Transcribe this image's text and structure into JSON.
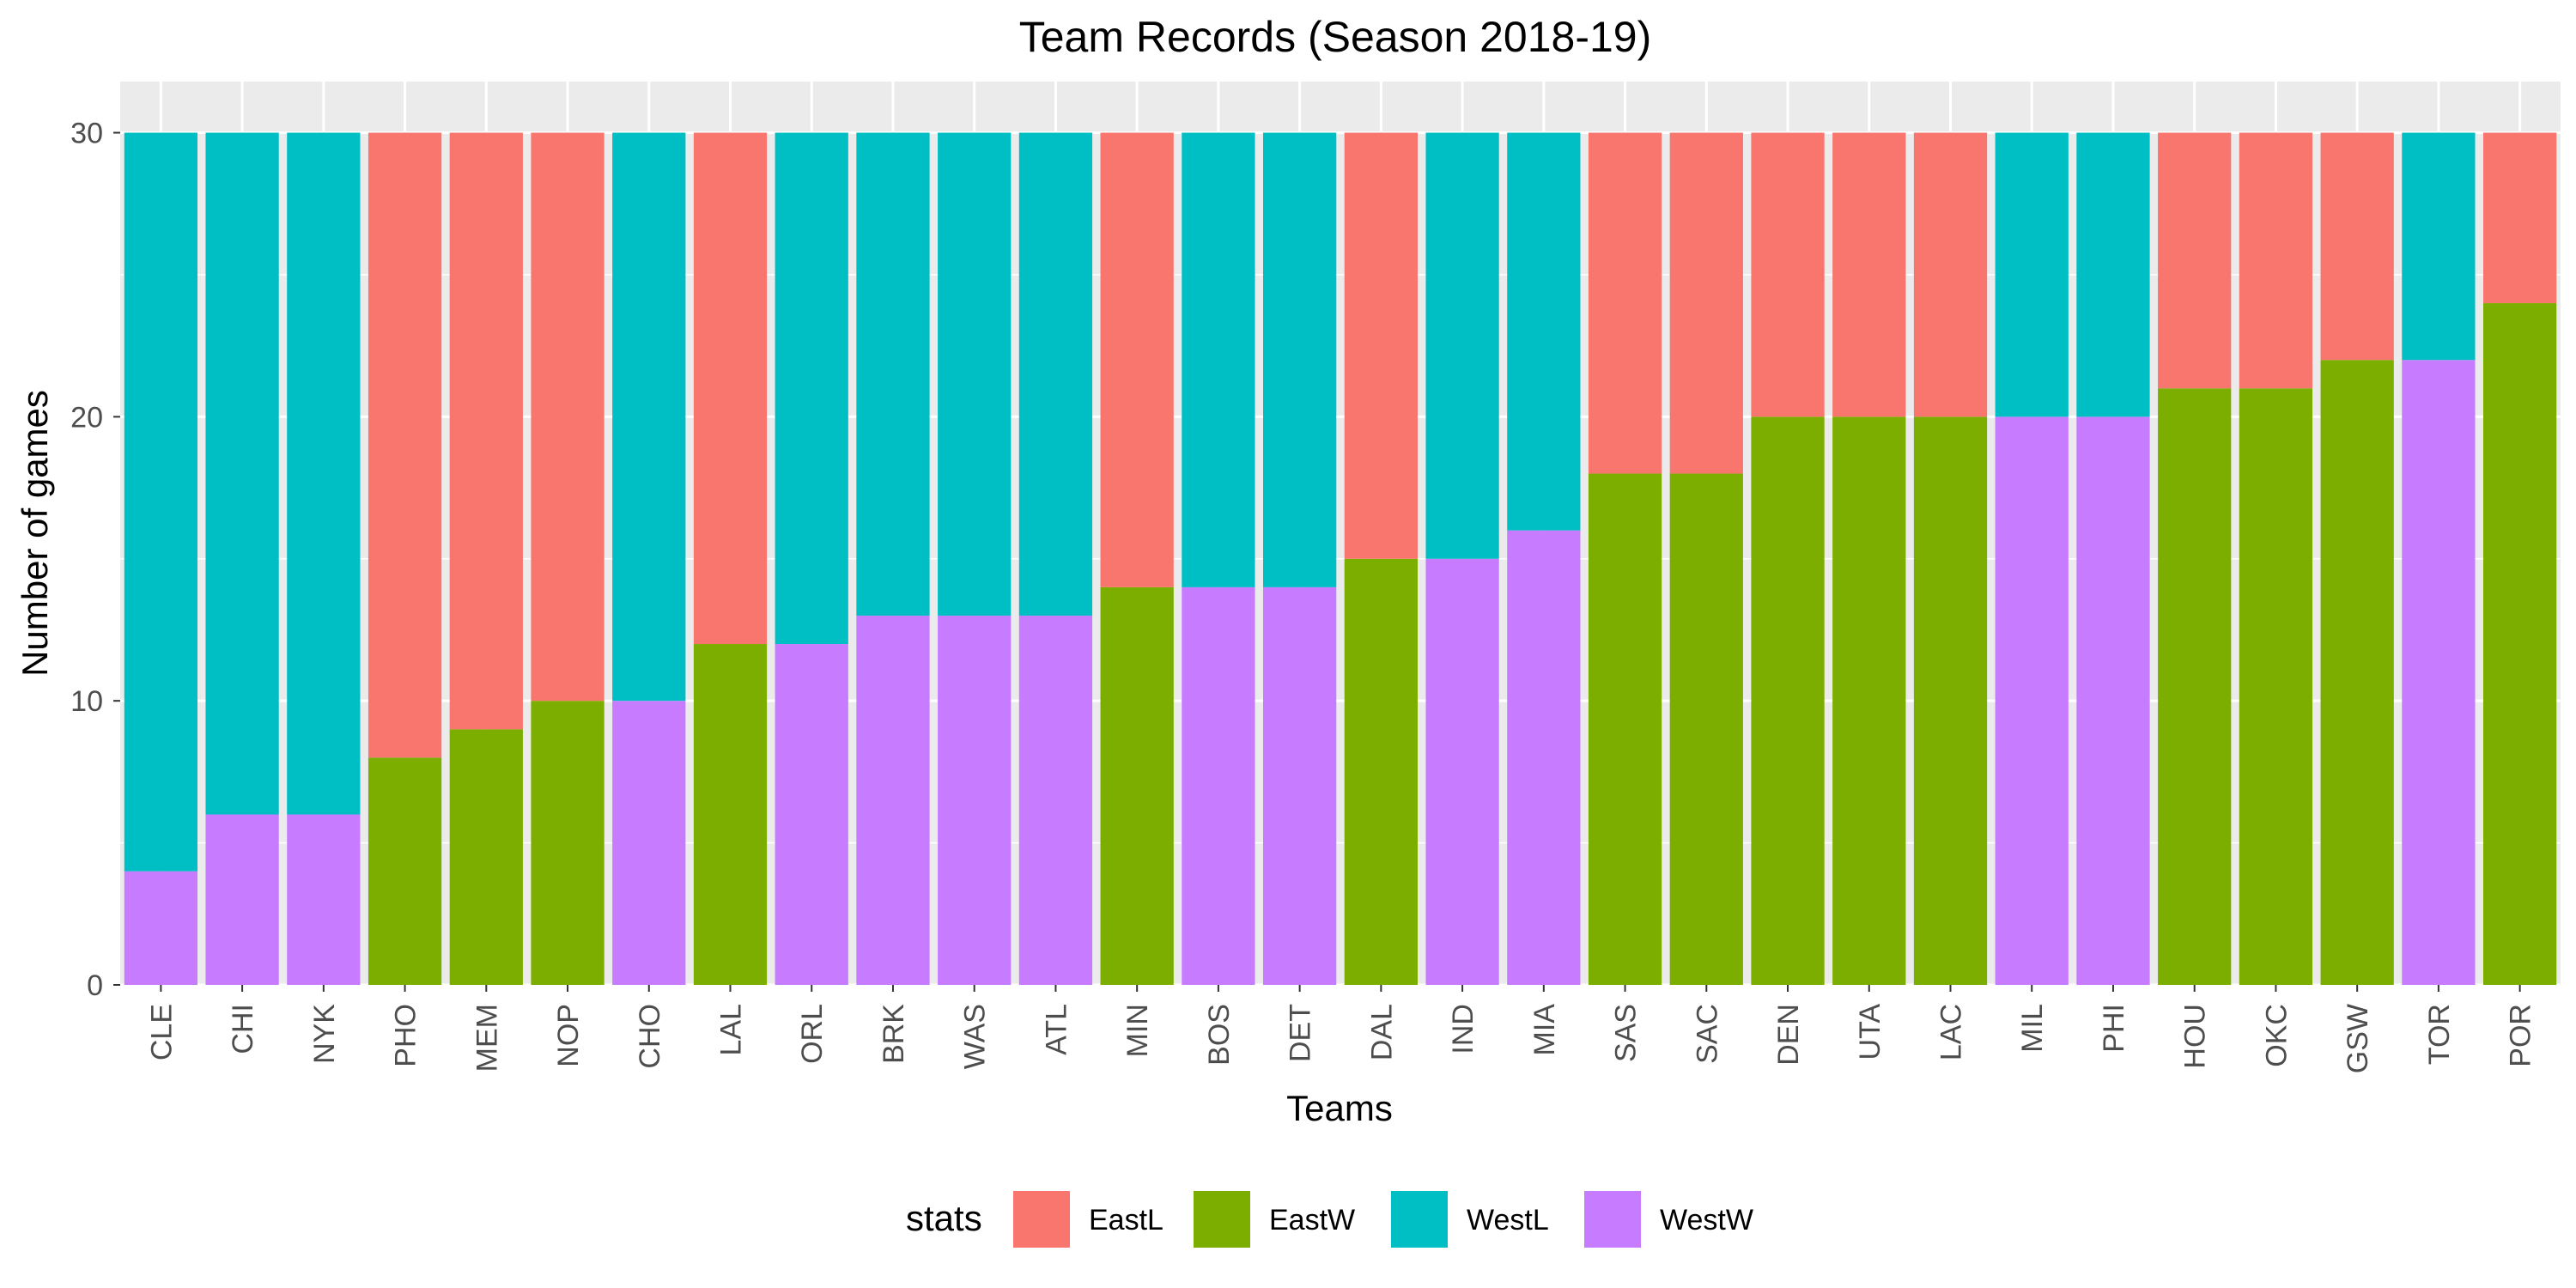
{
  "chart_data": {
    "type": "bar",
    "stacked": true,
    "title": "Team Records (Season 2018-19)",
    "xlabel": "Teams",
    "ylabel": "Number of games",
    "ylim": [
      0,
      31.8
    ],
    "yticks": [
      0,
      10,
      20,
      30
    ],
    "grid": true,
    "legend_position": "bottom",
    "legend_title": "stats",
    "categories": [
      "CLE",
      "CHI",
      "NYK",
      "PHO",
      "MEM",
      "NOP",
      "CHO",
      "LAL",
      "ORL",
      "BRK",
      "WAS",
      "ATL",
      "MIN",
      "BOS",
      "DET",
      "DAL",
      "IND",
      "MIA",
      "SAS",
      "SAC",
      "DEN",
      "UTA",
      "LAC",
      "MIL",
      "PHI",
      "HOU",
      "OKC",
      "GSW",
      "TOR",
      "POR"
    ],
    "series": [
      {
        "name": "EastL",
        "color": "#F8766D",
        "values": [
          0,
          0,
          0,
          22,
          21,
          20,
          0,
          18,
          0,
          0,
          0,
          0,
          16,
          0,
          0,
          15,
          0,
          0,
          12,
          12,
          10,
          10,
          10,
          0,
          0,
          9,
          9,
          8,
          0,
          6
        ]
      },
      {
        "name": "EastW",
        "color": "#7CAE00",
        "values": [
          0,
          0,
          0,
          8,
          9,
          10,
          0,
          12,
          0,
          0,
          0,
          0,
          14,
          0,
          0,
          15,
          0,
          0,
          18,
          18,
          20,
          20,
          20,
          0,
          0,
          21,
          21,
          22,
          0,
          24
        ]
      },
      {
        "name": "WestL",
        "color": "#00BFC4",
        "values": [
          26,
          24,
          24,
          0,
          0,
          0,
          20,
          0,
          18,
          17,
          17,
          17,
          0,
          16,
          16,
          0,
          15,
          14,
          0,
          0,
          0,
          0,
          0,
          10,
          10,
          0,
          0,
          0,
          8,
          0
        ]
      },
      {
        "name": "WestW",
        "color": "#C77CFF",
        "values": [
          4,
          6,
          6,
          0,
          0,
          0,
          10,
          0,
          12,
          13,
          13,
          13,
          0,
          14,
          14,
          0,
          15,
          16,
          0,
          0,
          0,
          0,
          0,
          20,
          20,
          0,
          0,
          0,
          22,
          0
        ]
      }
    ],
    "stack_order_bottom_to_top": [
      "WestW",
      "WestL",
      "EastW",
      "EastL"
    ]
  }
}
